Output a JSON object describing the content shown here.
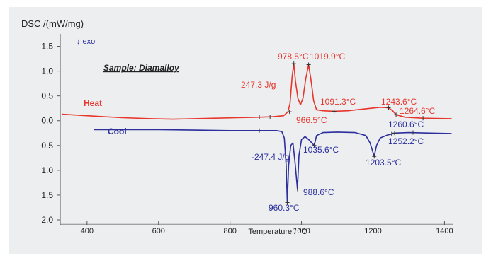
{
  "chart_data": {
    "type": "line",
    "title": "",
    "ylabel": "DSC /(mW/mg)",
    "xlabel": "Temperature / °C",
    "exo_label": "↓ exo",
    "sample_label": "Sample: Diamalloy",
    "xlim": [
      325,
      1425
    ],
    "x_ticks": [
      400,
      600,
      800,
      1000,
      1200,
      1400
    ],
    "y_ticks": [
      {
        "label": "1.5",
        "v": 1.5
      },
      {
        "label": "1.0",
        "v": 1.0
      },
      {
        "label": "0.5",
        "v": 0.5
      },
      {
        "label": "0.0",
        "v": 0.0
      },
      {
        "label": "0.5",
        "v": -0.5
      },
      {
        "label": "1.0",
        "v": -1.0
      },
      {
        "label": "1.5",
        "v": -1.5
      },
      {
        "label": "2.0",
        "v": -2.0
      }
    ],
    "ylim": [
      -2.1,
      1.75
    ],
    "grid": false,
    "colors": {
      "heat": "#e8362c",
      "cool": "#2c2f9c",
      "axis": "#555555",
      "frame": "#eceef0"
    },
    "series": [
      {
        "name": "Heat",
        "points": [
          [
            330,
            0.13
          ],
          [
            400,
            0.1
          ],
          [
            500,
            0.06
          ],
          [
            580,
            0.04
          ],
          [
            640,
            0.03
          ],
          [
            700,
            0.04
          ],
          [
            760,
            0.05
          ],
          [
            820,
            0.06
          ],
          [
            880,
            0.07
          ],
          [
            920,
            0.08
          ],
          [
            950,
            0.1
          ],
          [
            962,
            0.18
          ],
          [
            968,
            0.35
          ],
          [
            974,
            0.9
          ],
          [
            978.5,
            1.15
          ],
          [
            983,
            0.8
          ],
          [
            990,
            0.45
          ],
          [
            997,
            0.32
          ],
          [
            1004,
            0.45
          ],
          [
            1012,
            0.85
          ],
          [
            1019.9,
            1.13
          ],
          [
            1027,
            0.8
          ],
          [
            1034,
            0.4
          ],
          [
            1042,
            0.22
          ],
          [
            1060,
            0.2
          ],
          [
            1091.3,
            0.19
          ],
          [
            1130,
            0.2
          ],
          [
            1180,
            0.24
          ],
          [
            1220,
            0.27
          ],
          [
            1243.6,
            0.26
          ],
          [
            1255,
            0.2
          ],
          [
            1264.6,
            0.12
          ],
          [
            1290,
            0.07
          ],
          [
            1340,
            0.05
          ],
          [
            1420,
            0.04
          ]
        ]
      },
      {
        "name": "Cool",
        "points": [
          [
            420,
            -0.18
          ],
          [
            500,
            -0.18
          ],
          [
            600,
            -0.18
          ],
          [
            700,
            -0.19
          ],
          [
            800,
            -0.2
          ],
          [
            880,
            -0.2
          ],
          [
            930,
            -0.2
          ],
          [
            945,
            -0.22
          ],
          [
            952,
            -0.35
          ],
          [
            957,
            -0.9
          ],
          [
            960.3,
            -1.65
          ],
          [
            964,
            -0.9
          ],
          [
            970,
            -0.5
          ],
          [
            976,
            -0.45
          ],
          [
            982,
            -0.85
          ],
          [
            988.6,
            -1.38
          ],
          [
            993,
            -0.7
          ],
          [
            1000,
            -0.38
          ],
          [
            1010,
            -0.32
          ],
          [
            1020,
            -0.38
          ],
          [
            1035.6,
            -0.5
          ],
          [
            1042,
            -0.3
          ],
          [
            1060,
            -0.24
          ],
          [
            1100,
            -0.23
          ],
          [
            1150,
            -0.24
          ],
          [
            1180,
            -0.3
          ],
          [
            1192,
            -0.45
          ],
          [
            1203.5,
            -0.72
          ],
          [
            1210,
            -0.5
          ],
          [
            1220,
            -0.35
          ],
          [
            1240,
            -0.29
          ],
          [
            1252.2,
            -0.27
          ],
          [
            1260.6,
            -0.25
          ],
          [
            1300,
            -0.24
          ],
          [
            1360,
            -0.25
          ],
          [
            1420,
            -0.26
          ]
        ]
      }
    ],
    "annotations": [
      {
        "text": "978.5°C",
        "x": 978.5,
        "y": 1.15,
        "series": "Heat"
      },
      {
        "text": "1019.9°C",
        "x": 1019.9,
        "y": 1.13,
        "series": "Heat"
      },
      {
        "text": "247.3 J/g",
        "series": "Heat"
      },
      {
        "text": "1091.3°C",
        "x": 1091.3,
        "y": 0.19,
        "series": "Heat"
      },
      {
        "text": "1243.6°C",
        "x": 1243.6,
        "y": 0.26,
        "series": "Heat"
      },
      {
        "text": "1264.6°C",
        "x": 1264.6,
        "y": 0.12,
        "series": "Heat"
      },
      {
        "text": "966.5°C",
        "x": 966.5,
        "y": 0.18,
        "series": "Heat"
      },
      {
        "text": "1260.6°C",
        "x": 1260.6,
        "y": -0.25,
        "series": "Cool"
      },
      {
        "text": "1035.6°C",
        "x": 1035.6,
        "y": -0.5,
        "series": "Cool"
      },
      {
        "text": "-247.4 J/g",
        "series": "Cool"
      },
      {
        "text": "1252.2°C",
        "x": 1252.2,
        "y": -0.27,
        "series": "Cool"
      },
      {
        "text": "1203.5°C",
        "x": 1203.5,
        "y": -0.72,
        "series": "Cool"
      },
      {
        "text": "988.6°C",
        "x": 988.6,
        "y": -1.38,
        "series": "Cool"
      },
      {
        "text": "960.3°C",
        "x": 960.3,
        "y": -1.65,
        "series": "Cool"
      }
    ]
  }
}
